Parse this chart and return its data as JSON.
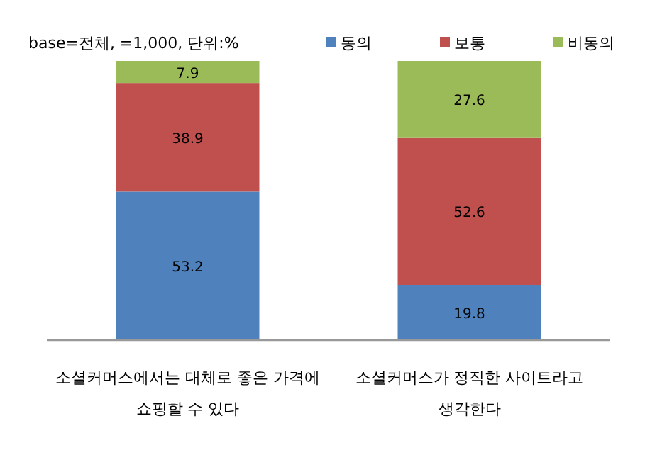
{
  "chart_data": {
    "type": "bar",
    "stacked": true,
    "title": "base=전체, =1,000, 단위:%",
    "categories": [
      "소셜커머스에서는 대체로 좋은 가격에 쇼핑할 수 있다",
      "소셜커머스가 정직한 사이트라고 생각한다"
    ],
    "series": [
      {
        "name": "동의",
        "color": "#4f81bd",
        "values": [
          53.2,
          19.8
        ]
      },
      {
        "name": "보통",
        "color": "#c0504d",
        "values": [
          38.9,
          52.6
        ]
      },
      {
        "name": "비동의",
        "color": "#9bbb59",
        "values": [
          7.9,
          27.6
        ]
      }
    ],
    "data_labels": true,
    "legend": "top right"
  }
}
